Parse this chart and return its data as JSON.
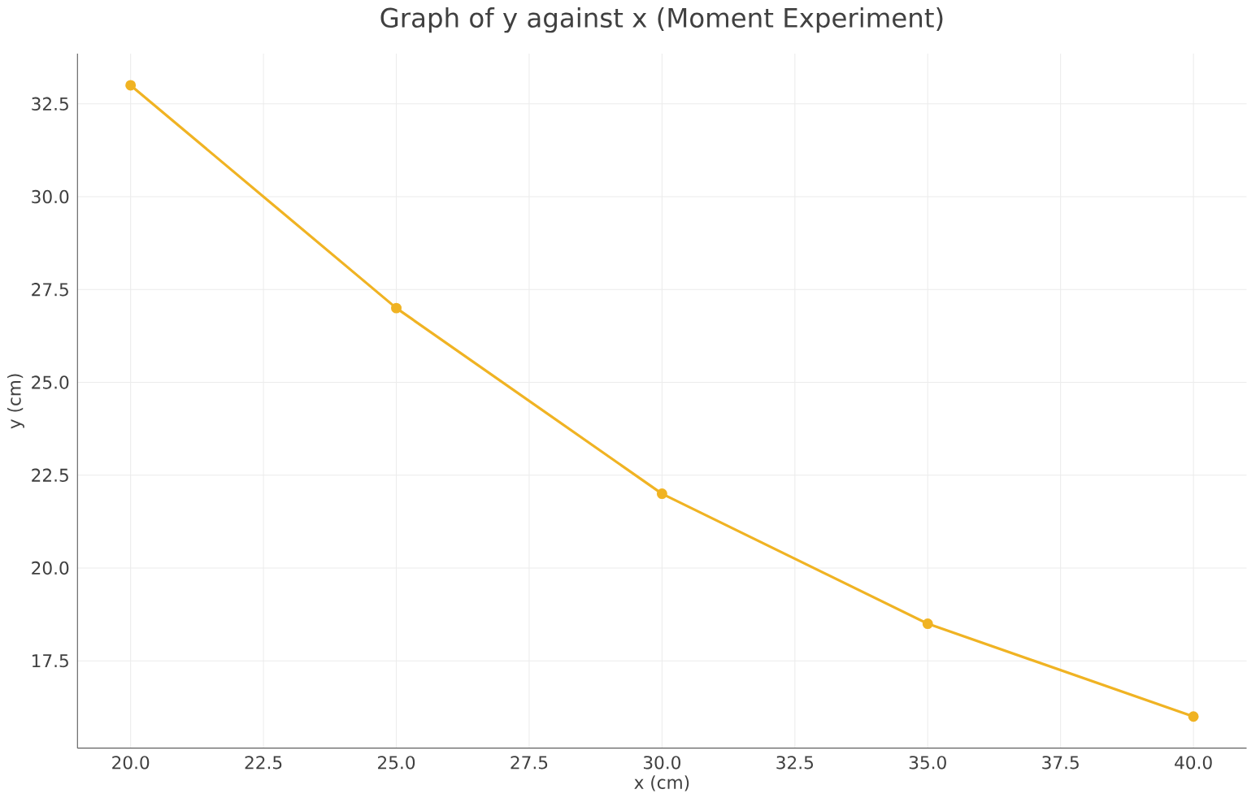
{
  "chart_data": {
    "type": "line",
    "title": "Graph of y against x (Moment Experiment)",
    "xlabel": "x (cm)",
    "ylabel": "y (cm)",
    "x": [
      20,
      25,
      30,
      35,
      40
    ],
    "series": [
      {
        "color": "#f0b323",
        "values": [
          33,
          27,
          22,
          18.5,
          16
        ]
      }
    ],
    "xlim": [
      19,
      41
    ],
    "ylim": [
      15.15,
      33.85
    ],
    "xticks": [
      {
        "value": 20,
        "label": "20.0"
      },
      {
        "value": 22.5,
        "label": "22.5"
      },
      {
        "value": 25,
        "label": "25.0"
      },
      {
        "value": 27.5,
        "label": "27.5"
      },
      {
        "value": 30,
        "label": "30.0"
      },
      {
        "value": 32.5,
        "label": "32.5"
      },
      {
        "value": 35,
        "label": "35.0"
      },
      {
        "value": 37.5,
        "label": "37.5"
      },
      {
        "value": 40,
        "label": "40.0"
      }
    ],
    "yticks": [
      {
        "value": 17.5,
        "label": "17.5"
      },
      {
        "value": 20,
        "label": "20.0"
      },
      {
        "value": 22.5,
        "label": "22.5"
      },
      {
        "value": 25,
        "label": "25.0"
      },
      {
        "value": 27.5,
        "label": "27.5"
      },
      {
        "value": 30,
        "label": "30.0"
      },
      {
        "value": 32.5,
        "label": "32.5"
      }
    ],
    "grid": true,
    "marker": "circle",
    "line_style": "solid"
  }
}
